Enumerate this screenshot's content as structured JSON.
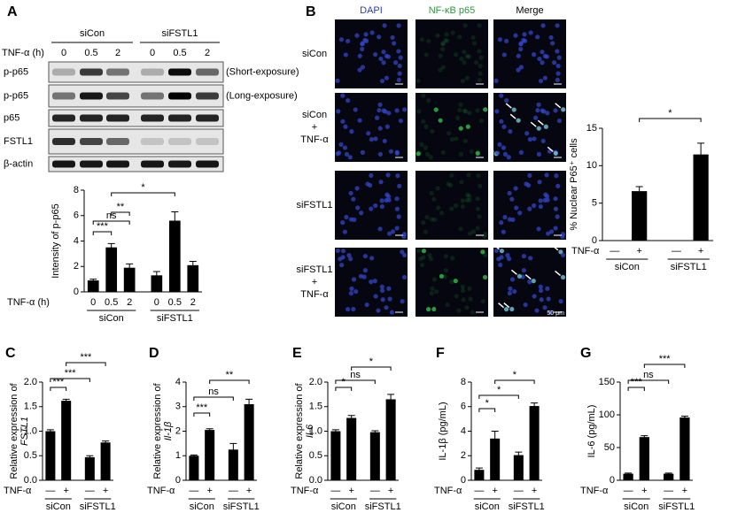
{
  "panels": [
    "A",
    "B",
    "C",
    "D",
    "E",
    "F",
    "G"
  ],
  "blot": {
    "groups": [
      "siCon",
      "siFSTL1"
    ],
    "time_label": "TNF-α (h)",
    "lanes": [
      "0",
      "0.5",
      "2",
      "0",
      "0.5",
      "2"
    ],
    "rows": [
      {
        "label": "p-p65",
        "note": "(Short-exposure)"
      },
      {
        "label": "p-p65",
        "note": "(Long-exposure)"
      },
      {
        "label": "p65"
      },
      {
        "label": "FSTL1"
      },
      {
        "label": "β-actin"
      }
    ]
  },
  "micrographs": {
    "columns": [
      "DAPI",
      "NF-κB p65",
      "Merge"
    ],
    "rows": [
      [
        "siCon"
      ],
      [
        "siCon",
        "+",
        "TNF-α"
      ],
      [
        "siFSTL1"
      ],
      [
        "siFSTL1",
        "+",
        "TNF-α"
      ]
    ],
    "scale_bar": "50 μm"
  },
  "chart_data": [
    {
      "type": "bar",
      "y_label": "Intensity of p-p65",
      "x_label": "TNF-α (h)",
      "categories": [
        "0",
        "0.5",
        "2",
        "0",
        "0.5",
        "2"
      ],
      "groups": [
        "siCon",
        "siFSTL1"
      ],
      "values": [
        0.9,
        3.5,
        1.9,
        1.3,
        5.6,
        2.1
      ],
      "errors": [
        0.1,
        0.3,
        0.3,
        0.3,
        0.7,
        0.3
      ],
      "color": "#000000",
      "ylim": [
        0,
        8
      ],
      "yticks": [
        0,
        2,
        4,
        6,
        8
      ],
      "annotations": [
        "***",
        "ns",
        "**",
        "*"
      ]
    },
    {
      "type": "bar",
      "y_label": "% Nuclear P65⁺ cells",
      "x_label": "TNF-α",
      "categories": [
        "—",
        "+",
        "—",
        "+"
      ],
      "groups": [
        "siCon",
        "siFSTL1"
      ],
      "values": [
        0,
        6.6,
        0,
        11.5
      ],
      "errors": [
        0,
        0.6,
        0,
        1.5
      ],
      "color": "#000000",
      "ylim": [
        0,
        15
      ],
      "yticks": [
        0,
        5,
        10,
        15
      ],
      "annotations": [
        "*"
      ]
    },
    {
      "type": "bar",
      "y_label": [
        "Relative expression of",
        "FSTL1"
      ],
      "x_label": "TNF-α",
      "categories": [
        "—",
        "+",
        "—",
        "+"
      ],
      "groups": [
        "siCon",
        "siFSTL1"
      ],
      "values": [
        1.0,
        1.62,
        0.47,
        0.77
      ],
      "errors": [
        0.03,
        0.03,
        0.03,
        0.03
      ],
      "color": "#000000",
      "ylim": [
        0,
        2
      ],
      "yticks": [
        {
          "value": 0,
          "label": "0.0"
        },
        0.5,
        {
          "value": 1,
          "label": "1.0"
        },
        1.5,
        {
          "value": 2,
          "label": "2.0"
        }
      ],
      "annotations": [
        "***",
        "***",
        "***"
      ]
    },
    {
      "type": "bar",
      "y_label": [
        "Relative expression of",
        "Il-1β"
      ],
      "x_label": "TNF-α",
      "categories": [
        "—",
        "+",
        "—",
        "+"
      ],
      "groups": [
        "siCon",
        "siFSTL1"
      ],
      "values": [
        1.0,
        2.05,
        1.25,
        3.1
      ],
      "errors": [
        0.03,
        0.05,
        0.25,
        0.2
      ],
      "color": "#000000",
      "ylim": [
        0,
        4
      ],
      "yticks": [
        0,
        1,
        2,
        3,
        4
      ],
      "annotations": [
        "***",
        "ns",
        "**"
      ]
    },
    {
      "type": "bar",
      "y_label": [
        "Relative expression of",
        "Il-6"
      ],
      "x_label": "TNF-α",
      "categories": [
        "—",
        "+",
        "—",
        "+"
      ],
      "groups": [
        "siCon",
        "siFSTL1"
      ],
      "values": [
        1.0,
        1.27,
        0.98,
        1.65
      ],
      "errors": [
        0.03,
        0.05,
        0.03,
        0.1
      ],
      "color": "#000000",
      "ylim": [
        0,
        2
      ],
      "yticks": [
        {
          "value": 0,
          "label": "0.0"
        },
        0.5,
        {
          "value": 1,
          "label": "1.0"
        },
        1.5,
        {
          "value": 2,
          "label": "2.0"
        }
      ],
      "annotations": [
        "*",
        "ns",
        "*"
      ]
    },
    {
      "type": "bar",
      "y_label": "IL-1β (pg/mL)",
      "x_label": "TNF-α",
      "categories": [
        "—",
        "+",
        "—",
        "+"
      ],
      "groups": [
        "siCon",
        "siFSTL1"
      ],
      "values": [
        0.85,
        3.4,
        2.05,
        6.05
      ],
      "errors": [
        0.15,
        0.6,
        0.25,
        0.25
      ],
      "color": "#000000",
      "ylim": [
        0,
        8
      ],
      "yticks": [
        0,
        2,
        4,
        6,
        8
      ],
      "annotations": [
        "*",
        "*",
        "*"
      ]
    },
    {
      "type": "bar",
      "y_label": "IL-6 (pg/mL)",
      "x_label": "TNF-α",
      "categories": [
        "—",
        "+",
        "—",
        "+"
      ],
      "groups": [
        "siCon",
        "siFSTL1"
      ],
      "values": [
        10,
        66,
        10,
        96
      ],
      "errors": [
        1,
        2,
        1,
        2
      ],
      "color": "#000000",
      "ylim": [
        0,
        150
      ],
      "yticks": [
        0,
        50,
        100,
        150
      ],
      "annotations": [
        "***",
        "ns",
        "***"
      ]
    }
  ]
}
